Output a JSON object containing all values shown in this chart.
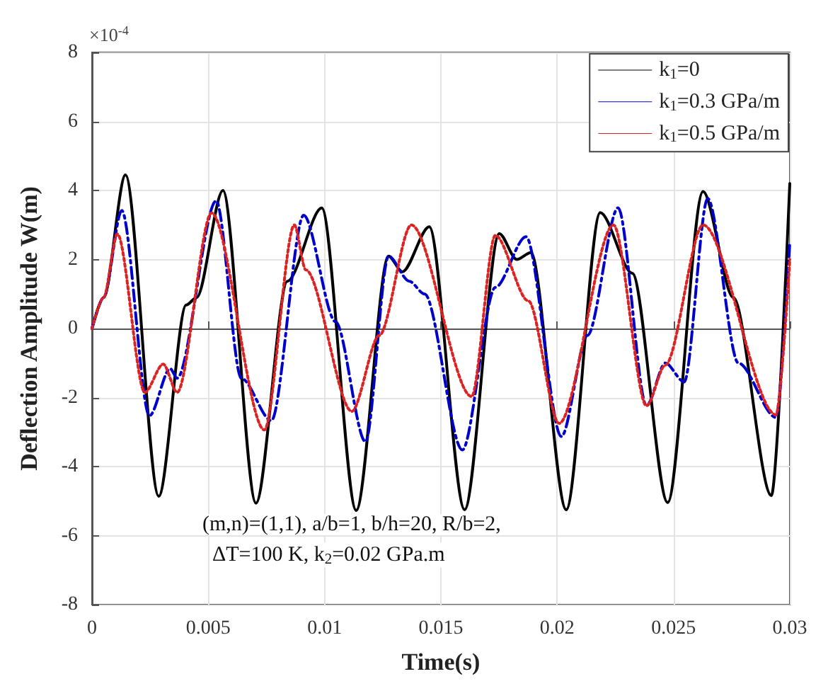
{
  "chart_data": {
    "type": "line",
    "xlabel": "Time(s)",
    "ylabel": "Deflection Amplitude W(m)",
    "xlim": [
      0,
      0.03
    ],
    "xticks": [
      0,
      0.005,
      0.01,
      0.015,
      0.02,
      0.025,
      0.03
    ],
    "ylim": [
      -8,
      8
    ],
    "yticks": [
      -8,
      -6,
      -4,
      -2,
      0,
      2,
      4,
      6,
      8
    ],
    "grid": true,
    "legend": "top right",
    "marker": "none",
    "annotations": [
      "×10$^{-4}$",
      "(m,n)=(1,1), a/b=1, b/h=20, R/b=2,",
      "ΔT=100 K, k$_{2}$=0.02 GPa.m"
    ],
    "series": [
      {
        "name": "k$_{1}$=0",
        "color": "#000000",
        "line_style": "solid",
        "x": [
          0,
          0.0005,
          0.00144,
          0.00287,
          0.00405,
          0.0045,
          0.00563,
          0.00705,
          0.0084,
          0.00988,
          0.01136,
          0.01275,
          0.01334,
          0.0145,
          0.01602,
          0.01751,
          0.01826,
          0.01887,
          0.02039,
          0.02185,
          0.02323,
          0.02475,
          0.02627,
          0.02757,
          0.02921,
          0.03
        ],
        "values": [
          0,
          0.9,
          4.45,
          -4.86,
          0.68,
          0.9,
          4.0,
          -5.06,
          1.37,
          3.49,
          -5.27,
          2.1,
          1.64,
          2.95,
          -5.25,
          2.75,
          2.0,
          2.2,
          -5.25,
          3.36,
          1.6,
          -5.04,
          3.97,
          0.9,
          -4.84,
          4.2
        ]
      },
      {
        "name": "k$_{1}$=0.3 GPa/m",
        "color": "#0000cc",
        "line_style": "dashed",
        "x": [
          0,
          0.0005,
          0.00128,
          0.00247,
          0.00336,
          0.00366,
          0.00534,
          0.00642,
          0.00771,
          0.0091,
          0.01047,
          0.01176,
          0.01275,
          0.01364,
          0.0143,
          0.01592,
          0.01734,
          0.01866,
          0.02018,
          0.0213,
          0.02262,
          0.02384,
          0.02465,
          0.02546,
          0.02647,
          0.02779,
          0.02941,
          0.03
        ],
        "values": [
          0,
          0.9,
          3.42,
          -2.53,
          -1.16,
          -1.44,
          3.7,
          -1.44,
          -2.67,
          3.28,
          0.2,
          -3.28,
          2.1,
          1.37,
          1.0,
          -3.52,
          1.19,
          2.66,
          -3.13,
          -0.2,
          3.5,
          -2.24,
          -1.0,
          -1.55,
          3.77,
          -1.0,
          -2.58,
          2.5
        ]
      },
      {
        "name": "k$_{1}$=0.5 GPa/m",
        "color": "#dd2222",
        "line_style": "dotted",
        "x": [
          0,
          0.0005,
          0.00109,
          0.00227,
          0.00306,
          0.00366,
          0.00514,
          0.00741,
          0.0087,
          0.00919,
          0.01117,
          0.01235,
          0.01373,
          0.01632,
          0.01734,
          0.01876,
          0.02008,
          0.02242,
          0.02384,
          0.02465,
          0.02627,
          0.02941,
          0.03
        ],
        "values": [
          0,
          0.9,
          2.74,
          -1.85,
          -1.03,
          -1.85,
          3.35,
          -2.94,
          3.0,
          1.7,
          -2.4,
          -0.2,
          3.0,
          -1.97,
          2.7,
          0.8,
          -2.75,
          3.0,
          -2.24,
          -1.06,
          3.0,
          -2.5,
          2.0
        ]
      }
    ]
  }
}
